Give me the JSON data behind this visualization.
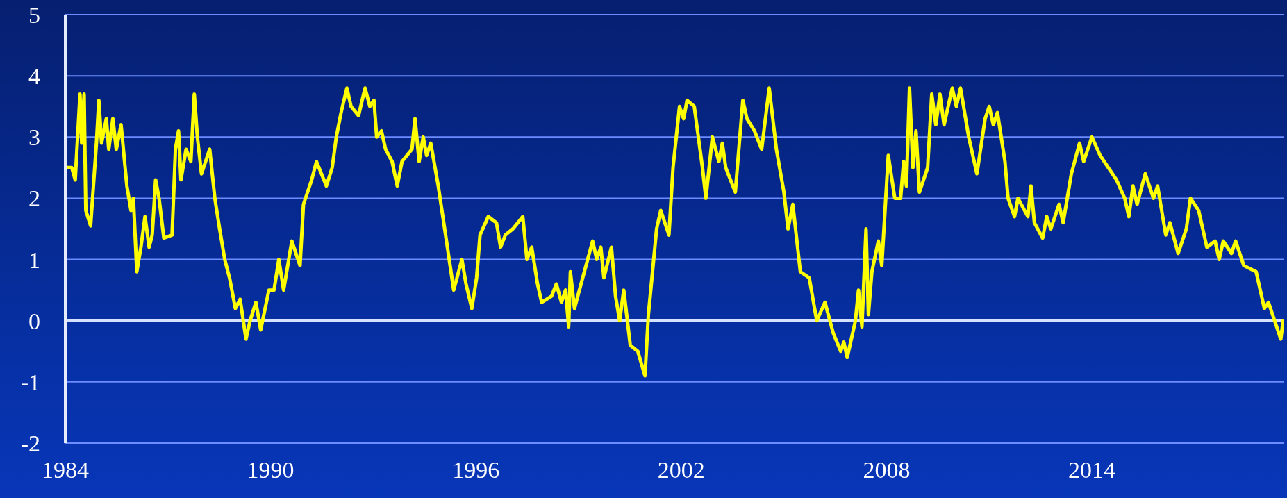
{
  "chart_data": {
    "type": "line",
    "xlim": [
      1984,
      2019.6
    ],
    "xticks": [
      1984,
      1990,
      1996,
      2002,
      2008,
      2014
    ],
    "ylim": [
      -2,
      5
    ],
    "yticks": [
      -2,
      -1,
      0,
      1,
      2,
      3,
      4,
      5
    ],
    "grid": "y",
    "legend": false,
    "marker": "none",
    "line_style": "solid",
    "ref_lines": [
      {
        "axis": "y",
        "value": 0,
        "color": "#d6e0ff"
      }
    ],
    "series": [
      {
        "color": "#ffff00",
        "x": [
          1984.0,
          1984.19,
          1984.29,
          1984.43,
          1984.48,
          1984.55,
          1984.6,
          1984.74,
          1984.91,
          1984.98,
          1985.06,
          1985.2,
          1985.27,
          1985.39,
          1985.49,
          1985.63,
          1985.8,
          1985.92,
          1985.99,
          1986.09,
          1986.21,
          1986.33,
          1986.45,
          1986.54,
          1986.64,
          1986.74,
          1986.88,
          1987.12,
          1987.22,
          1987.31,
          1987.38,
          1987.53,
          1987.67,
          1987.77,
          1987.86,
          1987.98,
          1988.22,
          1988.37,
          1988.51,
          1988.66,
          1988.8,
          1988.97,
          1989.11,
          1989.28,
          1989.4,
          1989.57,
          1989.71,
          1989.95,
          1990.1,
          1990.24,
          1990.38,
          1990.62,
          1990.86,
          1990.96,
          1991.2,
          1991.34,
          1991.63,
          1991.8,
          1991.92,
          1992.06,
          1992.23,
          1992.35,
          1992.57,
          1992.76,
          1992.9,
          1993.02,
          1993.1,
          1993.24,
          1993.36,
          1993.55,
          1993.7,
          1993.84,
          1994.13,
          1994.22,
          1994.34,
          1994.46,
          1994.56,
          1994.68,
          1994.9,
          1995.14,
          1995.35,
          1995.59,
          1995.71,
          1995.88,
          1996.02,
          1996.12,
          1996.36,
          1996.6,
          1996.72,
          1996.86,
          1997.08,
          1997.37,
          1997.49,
          1997.63,
          1997.8,
          1997.92,
          1998.21,
          1998.35,
          1998.5,
          1998.62,
          1998.71,
          1998.76,
          1998.88,
          1999.12,
          1999.41,
          1999.53,
          1999.65,
          1999.74,
          1999.96,
          2000.08,
          2000.2,
          2000.32,
          2000.51,
          2000.73,
          2000.94,
          2001.04,
          2001.28,
          2001.4,
          2001.64,
          2001.76,
          2001.95,
          2002.07,
          2002.17,
          2002.38,
          2002.62,
          2002.72,
          2002.91,
          2003.1,
          2003.2,
          2003.3,
          2003.58,
          2003.8,
          2003.92,
          2004.14,
          2004.35,
          2004.57,
          2004.78,
          2005.0,
          2005.12,
          2005.26,
          2005.48,
          2005.74,
          2005.96,
          2006.2,
          2006.44,
          2006.66,
          2006.75,
          2006.85,
          2007.09,
          2007.18,
          2007.28,
          2007.4,
          2007.47,
          2007.57,
          2007.76,
          2007.86,
          2008.05,
          2008.24,
          2008.41,
          2008.5,
          2008.58,
          2008.67,
          2008.77,
          2008.86,
          2008.96,
          2009.2,
          2009.32,
          2009.44,
          2009.56,
          2009.68,
          2009.92,
          2010.04,
          2010.16,
          2010.4,
          2010.64,
          2010.88,
          2011.0,
          2011.12,
          2011.24,
          2011.46,
          2011.55,
          2011.74,
          2011.84,
          2012.13,
          2012.22,
          2012.32,
          2012.56,
          2012.68,
          2012.8,
          2013.04,
          2013.16,
          2013.4,
          2013.64,
          2013.76,
          2014.0,
          2014.24,
          2014.48,
          2014.72,
          2014.96,
          2015.08,
          2015.2,
          2015.32,
          2015.56,
          2015.8,
          2015.92,
          2016.16,
          2016.28,
          2016.52,
          2016.76,
          2016.88,
          2017.12,
          2017.36,
          2017.6,
          2017.72,
          2017.84,
          2018.08,
          2018.2,
          2018.44,
          2018.8,
          2019.04,
          2019.16,
          2019.4,
          2019.52,
          2019.59
        ],
        "values": [
          2.5,
          2.5,
          2.3,
          3.7,
          2.9,
          3.7,
          1.8,
          1.55,
          2.9,
          3.6,
          2.9,
          3.3,
          2.8,
          3.3,
          2.8,
          3.2,
          2.2,
          1.8,
          2.0,
          0.8,
          1.2,
          1.7,
          1.2,
          1.4,
          2.3,
          2.0,
          1.35,
          1.4,
          2.8,
          3.1,
          2.3,
          2.8,
          2.6,
          3.7,
          3.0,
          2.4,
          2.8,
          2.0,
          1.5,
          1.0,
          0.7,
          0.2,
          0.35,
          -0.3,
          0.0,
          0.3,
          -0.15,
          0.5,
          0.5,
          1.0,
          0.5,
          1.3,
          0.9,
          1.9,
          2.3,
          2.6,
          2.2,
          2.5,
          3.0,
          3.4,
          3.8,
          3.5,
          3.35,
          3.8,
          3.5,
          3.6,
          3.0,
          3.1,
          2.8,
          2.6,
          2.2,
          2.6,
          2.8,
          3.3,
          2.6,
          3.0,
          2.7,
          2.9,
          2.2,
          1.3,
          0.5,
          1.0,
          0.6,
          0.2,
          0.7,
          1.4,
          1.7,
          1.6,
          1.2,
          1.4,
          1.5,
          1.7,
          1.0,
          1.2,
          0.6,
          0.3,
          0.4,
          0.6,
          0.3,
          0.5,
          -0.1,
          0.8,
          0.2,
          0.7,
          1.3,
          1.0,
          1.2,
          0.7,
          1.2,
          0.4,
          0.0,
          0.5,
          -0.4,
          -0.5,
          -0.9,
          0.1,
          1.5,
          1.8,
          1.4,
          2.5,
          3.5,
          3.3,
          3.6,
          3.5,
          2.5,
          2.0,
          3.0,
          2.6,
          2.9,
          2.5,
          2.1,
          3.6,
          3.3,
          3.1,
          2.8,
          3.8,
          2.8,
          2.1,
          1.5,
          1.9,
          0.8,
          0.7,
          0.0,
          0.3,
          -0.2,
          -0.5,
          -0.35,
          -0.6,
          0.0,
          0.5,
          -0.1,
          1.5,
          0.1,
          0.8,
          1.3,
          0.9,
          2.7,
          2.0,
          2.0,
          2.6,
          2.2,
          3.8,
          2.5,
          3.1,
          2.1,
          2.5,
          3.7,
          3.2,
          3.7,
          3.2,
          3.8,
          3.5,
          3.8,
          3.0,
          2.4,
          3.3,
          3.5,
          3.2,
          3.4,
          2.6,
          2.0,
          1.7,
          2.0,
          1.7,
          2.2,
          1.6,
          1.35,
          1.7,
          1.5,
          1.9,
          1.6,
          2.4,
          2.9,
          2.6,
          3.0,
          2.7,
          2.5,
          2.3,
          2.0,
          1.7,
          2.2,
          1.9,
          2.4,
          2.0,
          2.2,
          1.4,
          1.6,
          1.1,
          1.5,
          2.0,
          1.8,
          1.2,
          1.3,
          1.0,
          1.3,
          1.1,
          1.3,
          0.9,
          0.8,
          0.2,
          0.3,
          -0.1,
          -0.3,
          0.0
        ]
      }
    ]
  }
}
